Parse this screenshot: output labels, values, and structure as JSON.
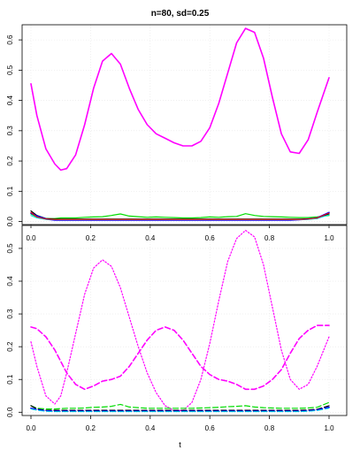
{
  "figure": {
    "title": "n=80, sd=0.25",
    "xlabel": "t"
  },
  "chart_data": [
    {
      "type": "line",
      "title": "n=80, sd=0.25",
      "xlabel": "",
      "ylabel": "",
      "xlim": [
        0,
        1
      ],
      "ylim": [
        -0.01,
        0.65
      ],
      "xticks": [
        "0.0",
        "0.2",
        "0.4",
        "0.6",
        "0.8",
        "1.0"
      ],
      "yticks": [
        "0.0",
        "0.1",
        "0.2",
        "0.3",
        "0.4",
        "0.5",
        "0.6"
      ],
      "grid": true,
      "x": [
        0.0,
        0.02,
        0.05,
        0.08,
        0.1,
        0.12,
        0.15,
        0.18,
        0.21,
        0.24,
        0.27,
        0.3,
        0.33,
        0.36,
        0.39,
        0.42,
        0.45,
        0.48,
        0.51,
        0.54,
        0.57,
        0.6,
        0.63,
        0.66,
        0.69,
        0.72,
        0.75,
        0.78,
        0.81,
        0.84,
        0.87,
        0.9,
        0.93,
        0.96,
        1.0
      ],
      "series": [
        {
          "color": "#ff00ff",
          "style": "solid",
          "width": 1.6,
          "values": [
            0.455,
            0.35,
            0.24,
            0.19,
            0.17,
            0.175,
            0.22,
            0.32,
            0.44,
            0.53,
            0.555,
            0.52,
            0.44,
            0.37,
            0.32,
            0.29,
            0.275,
            0.26,
            0.25,
            0.25,
            0.265,
            0.31,
            0.39,
            0.49,
            0.59,
            0.638,
            0.625,
            0.54,
            0.41,
            0.29,
            0.23,
            0.225,
            0.27,
            0.36,
            0.475
          ]
        },
        {
          "color": "#00dd00",
          "style": "solid",
          "width": 1.2,
          "values": [
            0.025,
            0.015,
            0.01,
            0.01,
            0.012,
            0.012,
            0.012,
            0.014,
            0.015,
            0.016,
            0.02,
            0.025,
            0.018,
            0.016,
            0.014,
            0.015,
            0.014,
            0.013,
            0.012,
            0.012,
            0.013,
            0.015,
            0.014,
            0.016,
            0.017,
            0.026,
            0.02,
            0.017,
            0.016,
            0.015,
            0.014,
            0.013,
            0.013,
            0.015,
            0.02
          ]
        },
        {
          "color": "#000000",
          "style": "solid",
          "width": 1.2,
          "values": [
            0.035,
            0.02,
            0.01,
            0.008,
            0.008,
            0.008,
            0.008,
            0.008,
            0.008,
            0.008,
            0.008,
            0.008,
            0.008,
            0.008,
            0.008,
            0.008,
            0.008,
            0.008,
            0.008,
            0.008,
            0.008,
            0.008,
            0.008,
            0.008,
            0.008,
            0.008,
            0.008,
            0.008,
            0.008,
            0.008,
            0.008,
            0.008,
            0.009,
            0.01,
            0.025
          ]
        },
        {
          "color": "#0000ff",
          "style": "solid",
          "width": 1.6,
          "values": [
            0.028,
            0.018,
            0.008,
            0.005,
            0.005,
            0.005,
            0.005,
            0.005,
            0.005,
            0.005,
            0.005,
            0.005,
            0.005,
            0.005,
            0.005,
            0.005,
            0.005,
            0.005,
            0.005,
            0.005,
            0.005,
            0.005,
            0.005,
            0.005,
            0.005,
            0.005,
            0.005,
            0.005,
            0.005,
            0.005,
            0.005,
            0.006,
            0.008,
            0.012,
            0.03
          ]
        },
        {
          "color": "#00dddd",
          "style": "solid",
          "width": 1.0,
          "values": [
            0.02,
            0.012,
            0.007,
            0.006,
            0.006,
            0.006,
            0.006,
            0.006,
            0.006,
            0.006,
            0.006,
            0.006,
            0.006,
            0.006,
            0.006,
            0.006,
            0.006,
            0.006,
            0.006,
            0.006,
            0.006,
            0.006,
            0.006,
            0.006,
            0.006,
            0.006,
            0.006,
            0.006,
            0.006,
            0.006,
            0.006,
            0.006,
            0.007,
            0.01,
            0.022
          ]
        },
        {
          "color": "#ff0000",
          "style": "solid",
          "width": 1.0,
          "values": [
            0.03,
            0.015,
            0.008,
            0.007,
            0.007,
            0.007,
            0.007,
            0.007,
            0.007,
            0.007,
            0.007,
            0.007,
            0.007,
            0.007,
            0.007,
            0.007,
            0.007,
            0.007,
            0.007,
            0.007,
            0.007,
            0.007,
            0.007,
            0.007,
            0.007,
            0.007,
            0.007,
            0.007,
            0.007,
            0.007,
            0.007,
            0.007,
            0.008,
            0.012,
            0.028
          ]
        }
      ]
    },
    {
      "type": "line",
      "title": "",
      "xlabel": "t",
      "ylabel": "",
      "xlim": [
        0,
        1
      ],
      "ylim": [
        -0.01,
        0.57
      ],
      "xticks": [
        "0.0",
        "0.2",
        "0.4",
        "0.6",
        "0.8",
        "1.0"
      ],
      "yticks": [
        "0.0",
        "0.1",
        "0.2",
        "0.3",
        "0.4",
        "0.5"
      ],
      "grid": true,
      "x": [
        0.0,
        0.02,
        0.05,
        0.08,
        0.1,
        0.12,
        0.15,
        0.18,
        0.21,
        0.24,
        0.27,
        0.3,
        0.33,
        0.36,
        0.39,
        0.42,
        0.45,
        0.48,
        0.51,
        0.54,
        0.57,
        0.6,
        0.63,
        0.66,
        0.69,
        0.72,
        0.75,
        0.78,
        0.81,
        0.84,
        0.87,
        0.9,
        0.93,
        0.96,
        1.0
      ],
      "series": [
        {
          "color": "#ff00ff",
          "style": "dotted",
          "width": 1.2,
          "values": [
            0.215,
            0.14,
            0.05,
            0.025,
            0.05,
            0.12,
            0.24,
            0.36,
            0.44,
            0.465,
            0.445,
            0.38,
            0.29,
            0.2,
            0.12,
            0.06,
            0.02,
            0.005,
            0.005,
            0.03,
            0.1,
            0.21,
            0.34,
            0.46,
            0.53,
            0.555,
            0.535,
            0.45,
            0.32,
            0.19,
            0.1,
            0.07,
            0.085,
            0.14,
            0.23
          ]
        },
        {
          "color": "#ff00ff",
          "style": "dashed",
          "width": 1.6,
          "values": [
            0.26,
            0.255,
            0.23,
            0.19,
            0.155,
            0.12,
            0.085,
            0.07,
            0.08,
            0.095,
            0.1,
            0.11,
            0.14,
            0.18,
            0.22,
            0.25,
            0.26,
            0.25,
            0.22,
            0.18,
            0.14,
            0.115,
            0.1,
            0.095,
            0.085,
            0.07,
            0.07,
            0.08,
            0.1,
            0.13,
            0.18,
            0.225,
            0.25,
            0.265,
            0.265
          ]
        },
        {
          "color": "#00dd00",
          "style": "dashed",
          "width": 1.2,
          "values": [
            0.02,
            0.012,
            0.01,
            0.01,
            0.011,
            0.012,
            0.012,
            0.013,
            0.015,
            0.016,
            0.018,
            0.024,
            0.016,
            0.014,
            0.012,
            0.012,
            0.012,
            0.012,
            0.012,
            0.012,
            0.013,
            0.014,
            0.015,
            0.017,
            0.018,
            0.02,
            0.016,
            0.014,
            0.013,
            0.012,
            0.012,
            0.012,
            0.013,
            0.015,
            0.03
          ]
        },
        {
          "color": "#000000",
          "style": "dashed",
          "width": 1.2,
          "values": [
            0.02,
            0.01,
            0.006,
            0.006,
            0.006,
            0.006,
            0.006,
            0.006,
            0.006,
            0.006,
            0.006,
            0.006,
            0.006,
            0.006,
            0.006,
            0.006,
            0.006,
            0.006,
            0.006,
            0.006,
            0.006,
            0.006,
            0.006,
            0.006,
            0.006,
            0.006,
            0.006,
            0.006,
            0.006,
            0.006,
            0.006,
            0.006,
            0.007,
            0.009,
            0.02
          ]
        },
        {
          "color": "#0000ff",
          "style": "dashed",
          "width": 1.6,
          "values": [
            0.012,
            0.008,
            0.004,
            0.003,
            0.003,
            0.003,
            0.003,
            0.003,
            0.003,
            0.003,
            0.003,
            0.003,
            0.003,
            0.003,
            0.003,
            0.003,
            0.003,
            0.003,
            0.003,
            0.003,
            0.003,
            0.003,
            0.003,
            0.003,
            0.003,
            0.003,
            0.003,
            0.003,
            0.003,
            0.003,
            0.003,
            0.003,
            0.004,
            0.007,
            0.015
          ]
        },
        {
          "color": "#00dddd",
          "style": "dashed",
          "width": 1.0,
          "values": [
            0.01,
            0.006,
            0.003,
            0.002,
            0.002,
            0.002,
            0.002,
            0.002,
            0.002,
            0.002,
            0.002,
            0.002,
            0.002,
            0.002,
            0.002,
            0.002,
            0.002,
            0.002,
            0.002,
            0.002,
            0.002,
            0.002,
            0.002,
            0.002,
            0.002,
            0.002,
            0.002,
            0.002,
            0.002,
            0.002,
            0.002,
            0.002,
            0.003,
            0.005,
            0.012
          ]
        }
      ]
    }
  ]
}
